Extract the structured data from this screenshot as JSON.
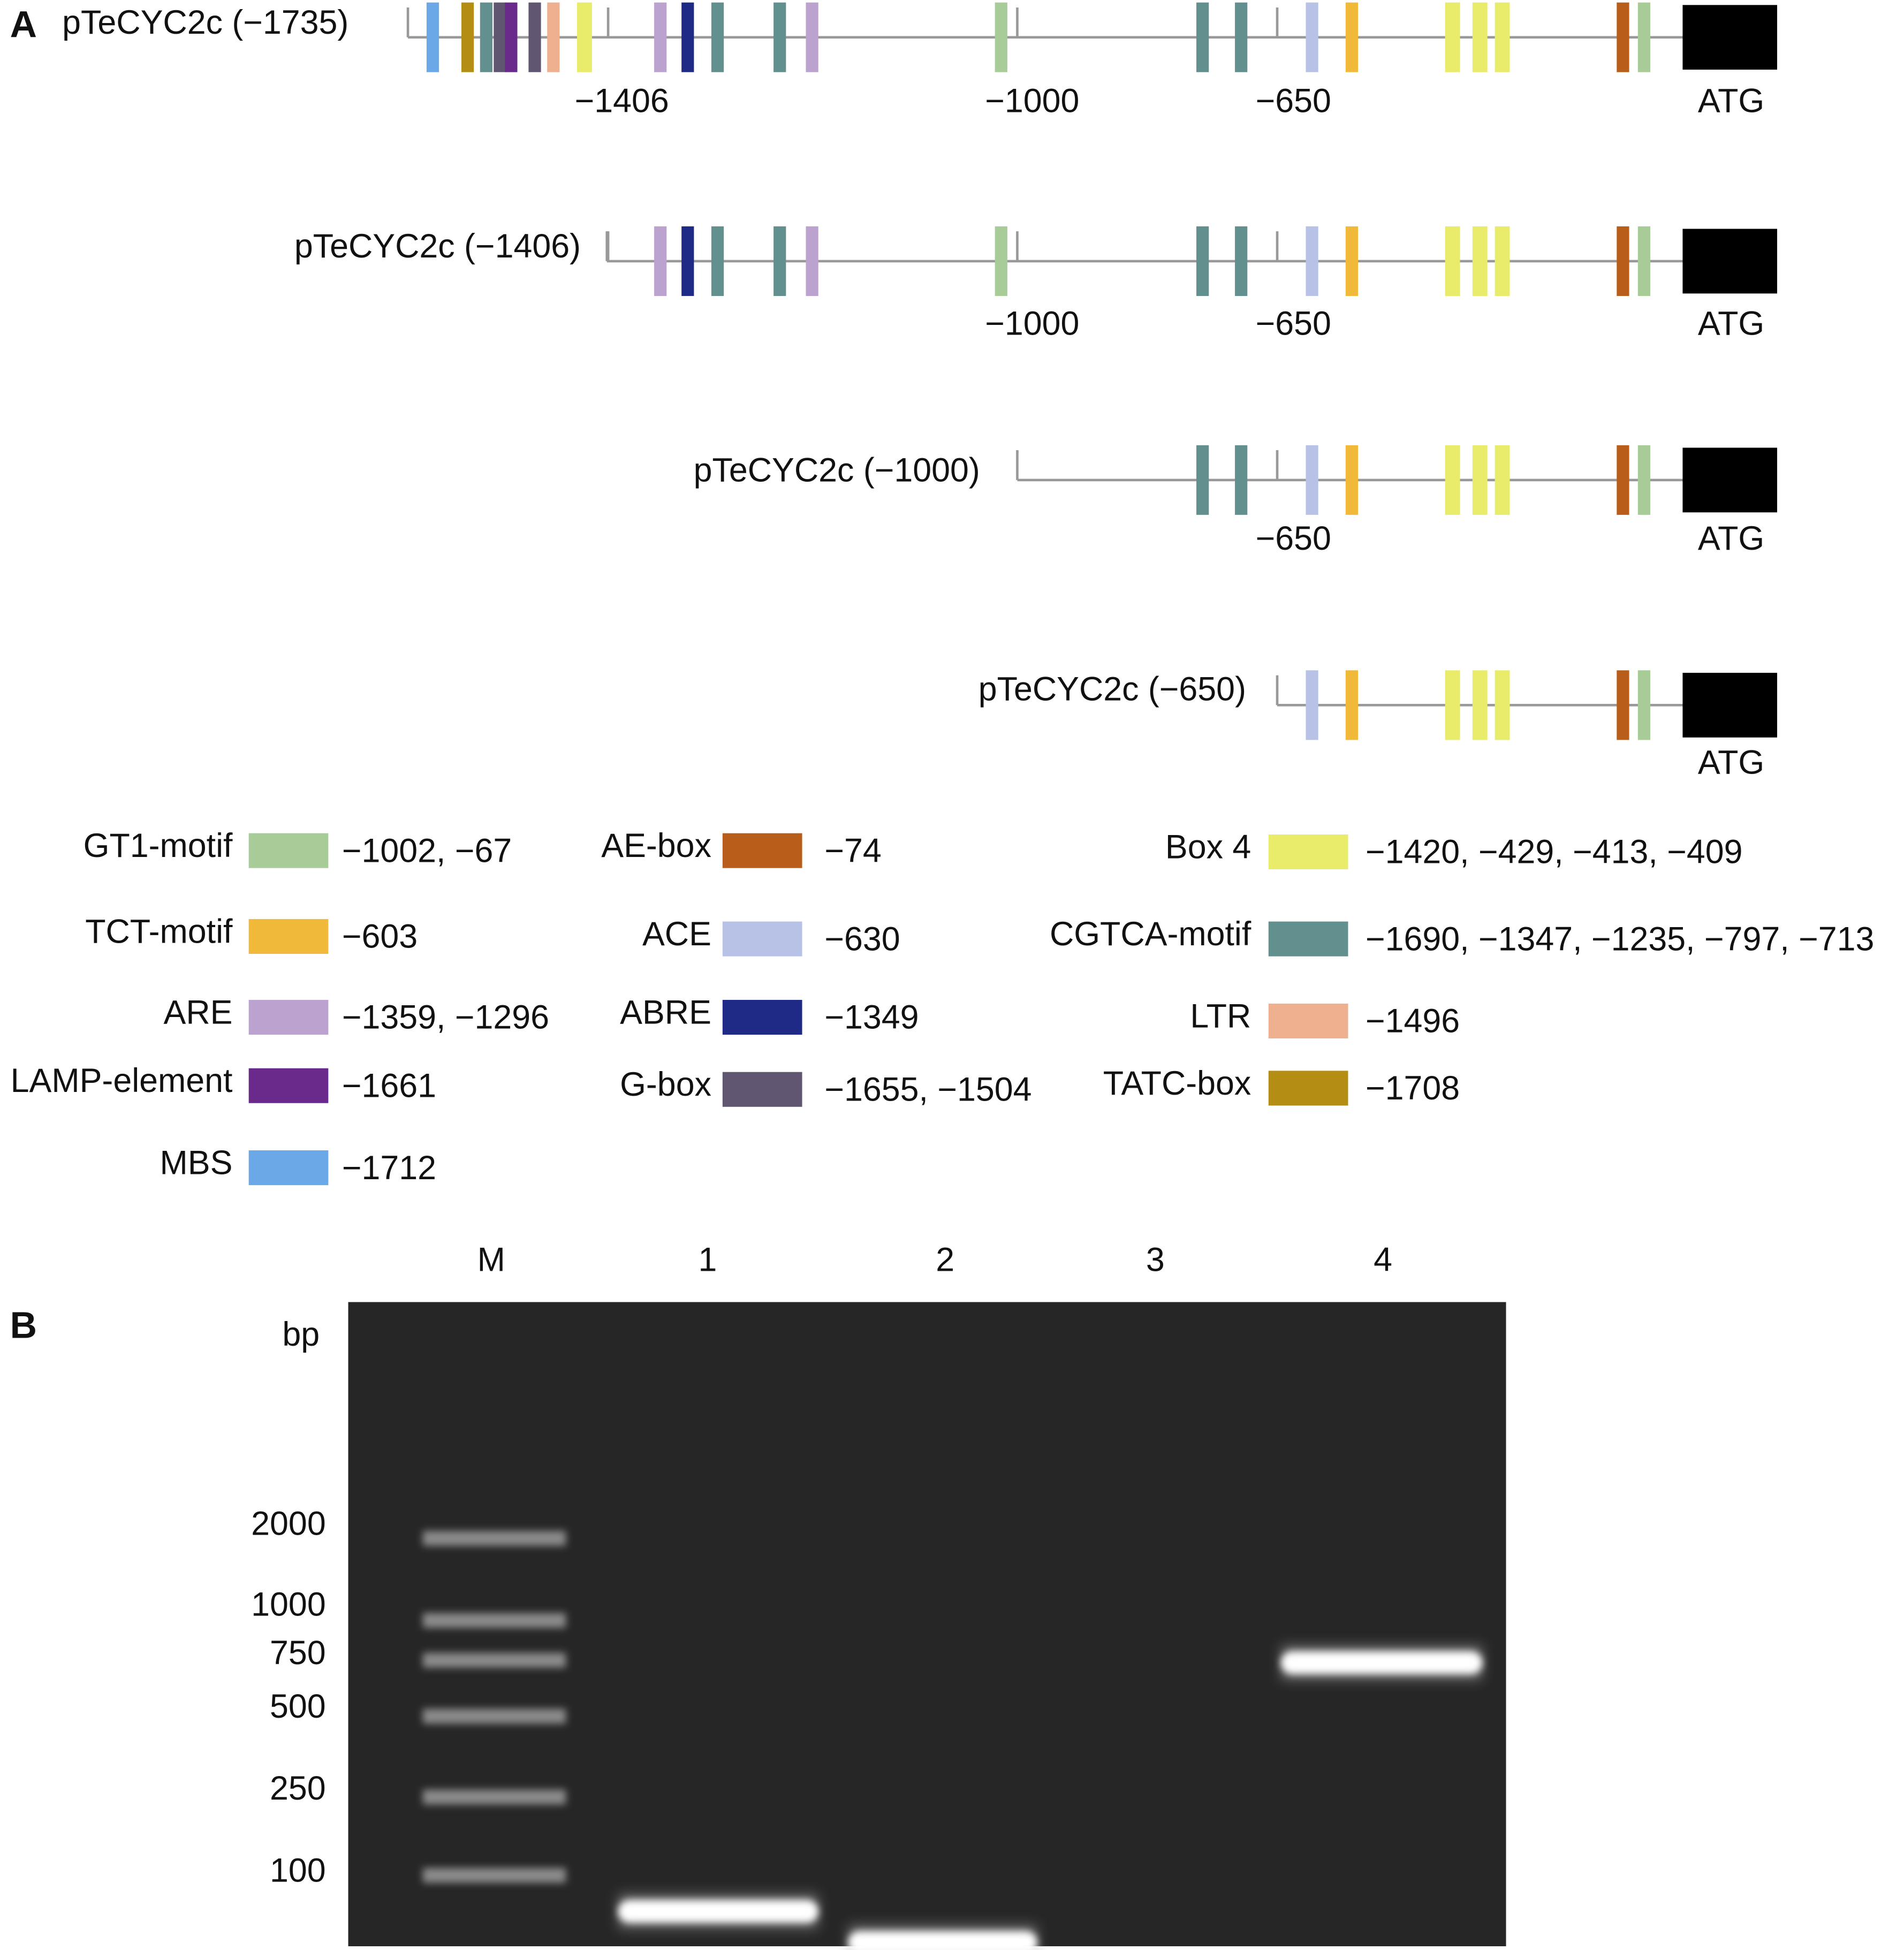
{
  "panel_a": {
    "label": "A",
    "constructs": [
      {
        "name": "pTeCYC2c (−1735)",
        "positions": [
          "−1406",
          "−1000",
          "−650"
        ],
        "start": "ATG"
      },
      {
        "name": "pTeCYC2c (−1406)",
        "positions": [
          "−1000",
          "−650"
        ],
        "start": "ATG"
      },
      {
        "name": "pTeCYC2c (−1000)",
        "positions": [
          "−650"
        ],
        "start": "ATG"
      },
      {
        "name": "pTeCYC2c (−650)",
        "positions": [],
        "start": "ATG"
      }
    ],
    "legend": [
      {
        "name": "GT1-motif",
        "color": "#a8cc98",
        "positions": "−1002, −67"
      },
      {
        "name": "TCT-motif",
        "color": "#f0b93a",
        "positions": "−603"
      },
      {
        "name": "ARE",
        "color": "#bba2cf",
        "positions": "−1359, −1296"
      },
      {
        "name": "LAMP-element",
        "color": "#6a2a8c",
        "positions": "−1661"
      },
      {
        "name": "MBS",
        "color": "#6aa8e8",
        "positions": "−1712"
      },
      {
        "name": "AE-box",
        "color": "#b85e1a",
        "positions": "−74"
      },
      {
        "name": "ACE",
        "color": "#b7c2e6",
        "positions": "−630"
      },
      {
        "name": "ABRE",
        "color": "#1f2a86",
        "positions": "−1349"
      },
      {
        "name": "G-box",
        "color": "#615672",
        "positions": "−1655, −1504"
      },
      {
        "name": "Box 4",
        "color": "#e8ec6a",
        "positions": "−1420, −429, −413, −409"
      },
      {
        "name": "CGTCA-motif",
        "color": "#62908f",
        "positions": "−1690, −1347, −1235, −797, −713"
      },
      {
        "name": "LTR",
        "color": "#eeb08e",
        "positions": "−1496"
      },
      {
        "name": "TATC-box",
        "color": "#b38d14",
        "positions": "−1708"
      }
    ]
  },
  "panel_b": {
    "label": "B",
    "lanes": [
      "M",
      "1",
      "2",
      "3",
      "4"
    ],
    "unit": "bp",
    "marker_sizes": [
      2000,
      1000,
      750,
      500,
      250,
      100
    ]
  }
}
